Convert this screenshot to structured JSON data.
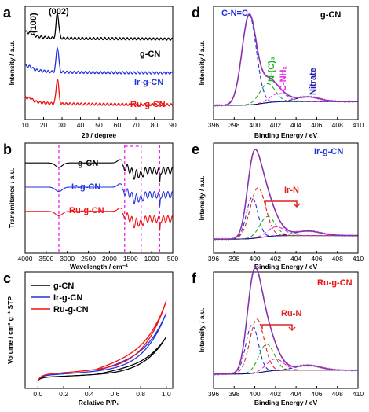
{
  "colors": {
    "black": "#000000",
    "blue": "#2233dd",
    "red": "#ee1111",
    "green": "#22aa22",
    "magenta": "#ee22ee",
    "purple": "#8833aa",
    "navy": "#1a1aaa",
    "dred": "#dd2222"
  },
  "panels": {
    "a": "a",
    "b": "b",
    "c": "c",
    "d": "d",
    "e": "e",
    "f": "f"
  },
  "chart_data": [
    {
      "id": "a",
      "type": "line",
      "xlabel": "2θ / degree",
      "ylabel": "Intensity / a.u.",
      "xlim": [
        10,
        90
      ],
      "xticks": [
        "10",
        "20",
        "30",
        "40",
        "50",
        "60",
        "70",
        "80",
        "90"
      ],
      "peaks": [
        "(100)",
        "(002)"
      ],
      "series": [
        {
          "name": "g-CN",
          "color": "black",
          "base": 0.72,
          "peak": 27.5
        },
        {
          "name": "Ir-g-CN",
          "color": "blue",
          "base": 0.42,
          "peak": 27.5
        },
        {
          "name": "Ru-g-CN",
          "color": "red",
          "base": 0.14,
          "peak": 27.5
        }
      ]
    },
    {
      "id": "b",
      "type": "line",
      "xlabel": "Wavelength / cm⁻¹",
      "ylabel": "Transmitance / a.u.",
      "xlim": [
        4000,
        500
      ],
      "xticks": [
        "4000",
        "3500",
        "3000",
        "2500",
        "2000",
        "1500",
        "1000",
        "500"
      ],
      "markers": [
        3200,
        1640,
        1250,
        810
      ],
      "series": [
        {
          "name": "g-CN",
          "color": "black"
        },
        {
          "name": "Ir-g-CN",
          "color": "blue"
        },
        {
          "name": "Ru-g-CN",
          "color": "red"
        }
      ]
    },
    {
      "id": "c",
      "type": "line",
      "xlabel": "Relative P/P₀",
      "ylabel": "Volume / cm³ g⁻¹ STP",
      "xlim": [
        -0.1,
        1.05
      ],
      "xticks": [
        "0.0",
        "0.2",
        "0.4",
        "0.6",
        "0.8",
        "1.0"
      ],
      "series": [
        {
          "name": "g-CN",
          "color": "black",
          "vmax": 0.55
        },
        {
          "name": "Ir-g-CN",
          "color": "blue",
          "vmax": 0.85
        },
        {
          "name": "Ru-g-CN",
          "color": "red",
          "vmax": 1.0
        }
      ]
    },
    {
      "id": "d",
      "type": "line",
      "title": "g-CN",
      "xlabel": "Binding Energy / eV",
      "ylabel": "Intensity / a.u.",
      "xlim": [
        395,
        410
      ],
      "xticks": [
        "396",
        "398",
        "400",
        "402",
        "404",
        "406",
        "408",
        "410"
      ],
      "components": [
        {
          "name": "C-N=C",
          "center": 398.7,
          "color": "blue"
        },
        {
          "name": "N-(C)₃",
          "center": 400.6,
          "color": "green"
        },
        {
          "name": "C-NHₓ",
          "center": 401.6,
          "color": "magenta"
        },
        {
          "name": "Nitrate",
          "center": 404.8,
          "color": "navy"
        }
      ]
    },
    {
      "id": "e",
      "type": "line",
      "title": "Ir-g-CN",
      "xlabel": "Binding Energy / eV",
      "ylabel": "Intensity / a.u.",
      "xlim": [
        395,
        410
      ],
      "xticks": [
        "396",
        "398",
        "400",
        "402",
        "404",
        "406",
        "408",
        "410"
      ],
      "annotation": "Ir-N"
    },
    {
      "id": "f",
      "type": "line",
      "title": "Ru-g-CN",
      "xlabel": "Binding Energy / eV",
      "ylabel": "Intensity / a.u.",
      "xlim": [
        395,
        410
      ],
      "xticks": [
        "396",
        "398",
        "400",
        "402",
        "404",
        "406",
        "408",
        "410"
      ],
      "annotation": "Ru-N"
    }
  ]
}
